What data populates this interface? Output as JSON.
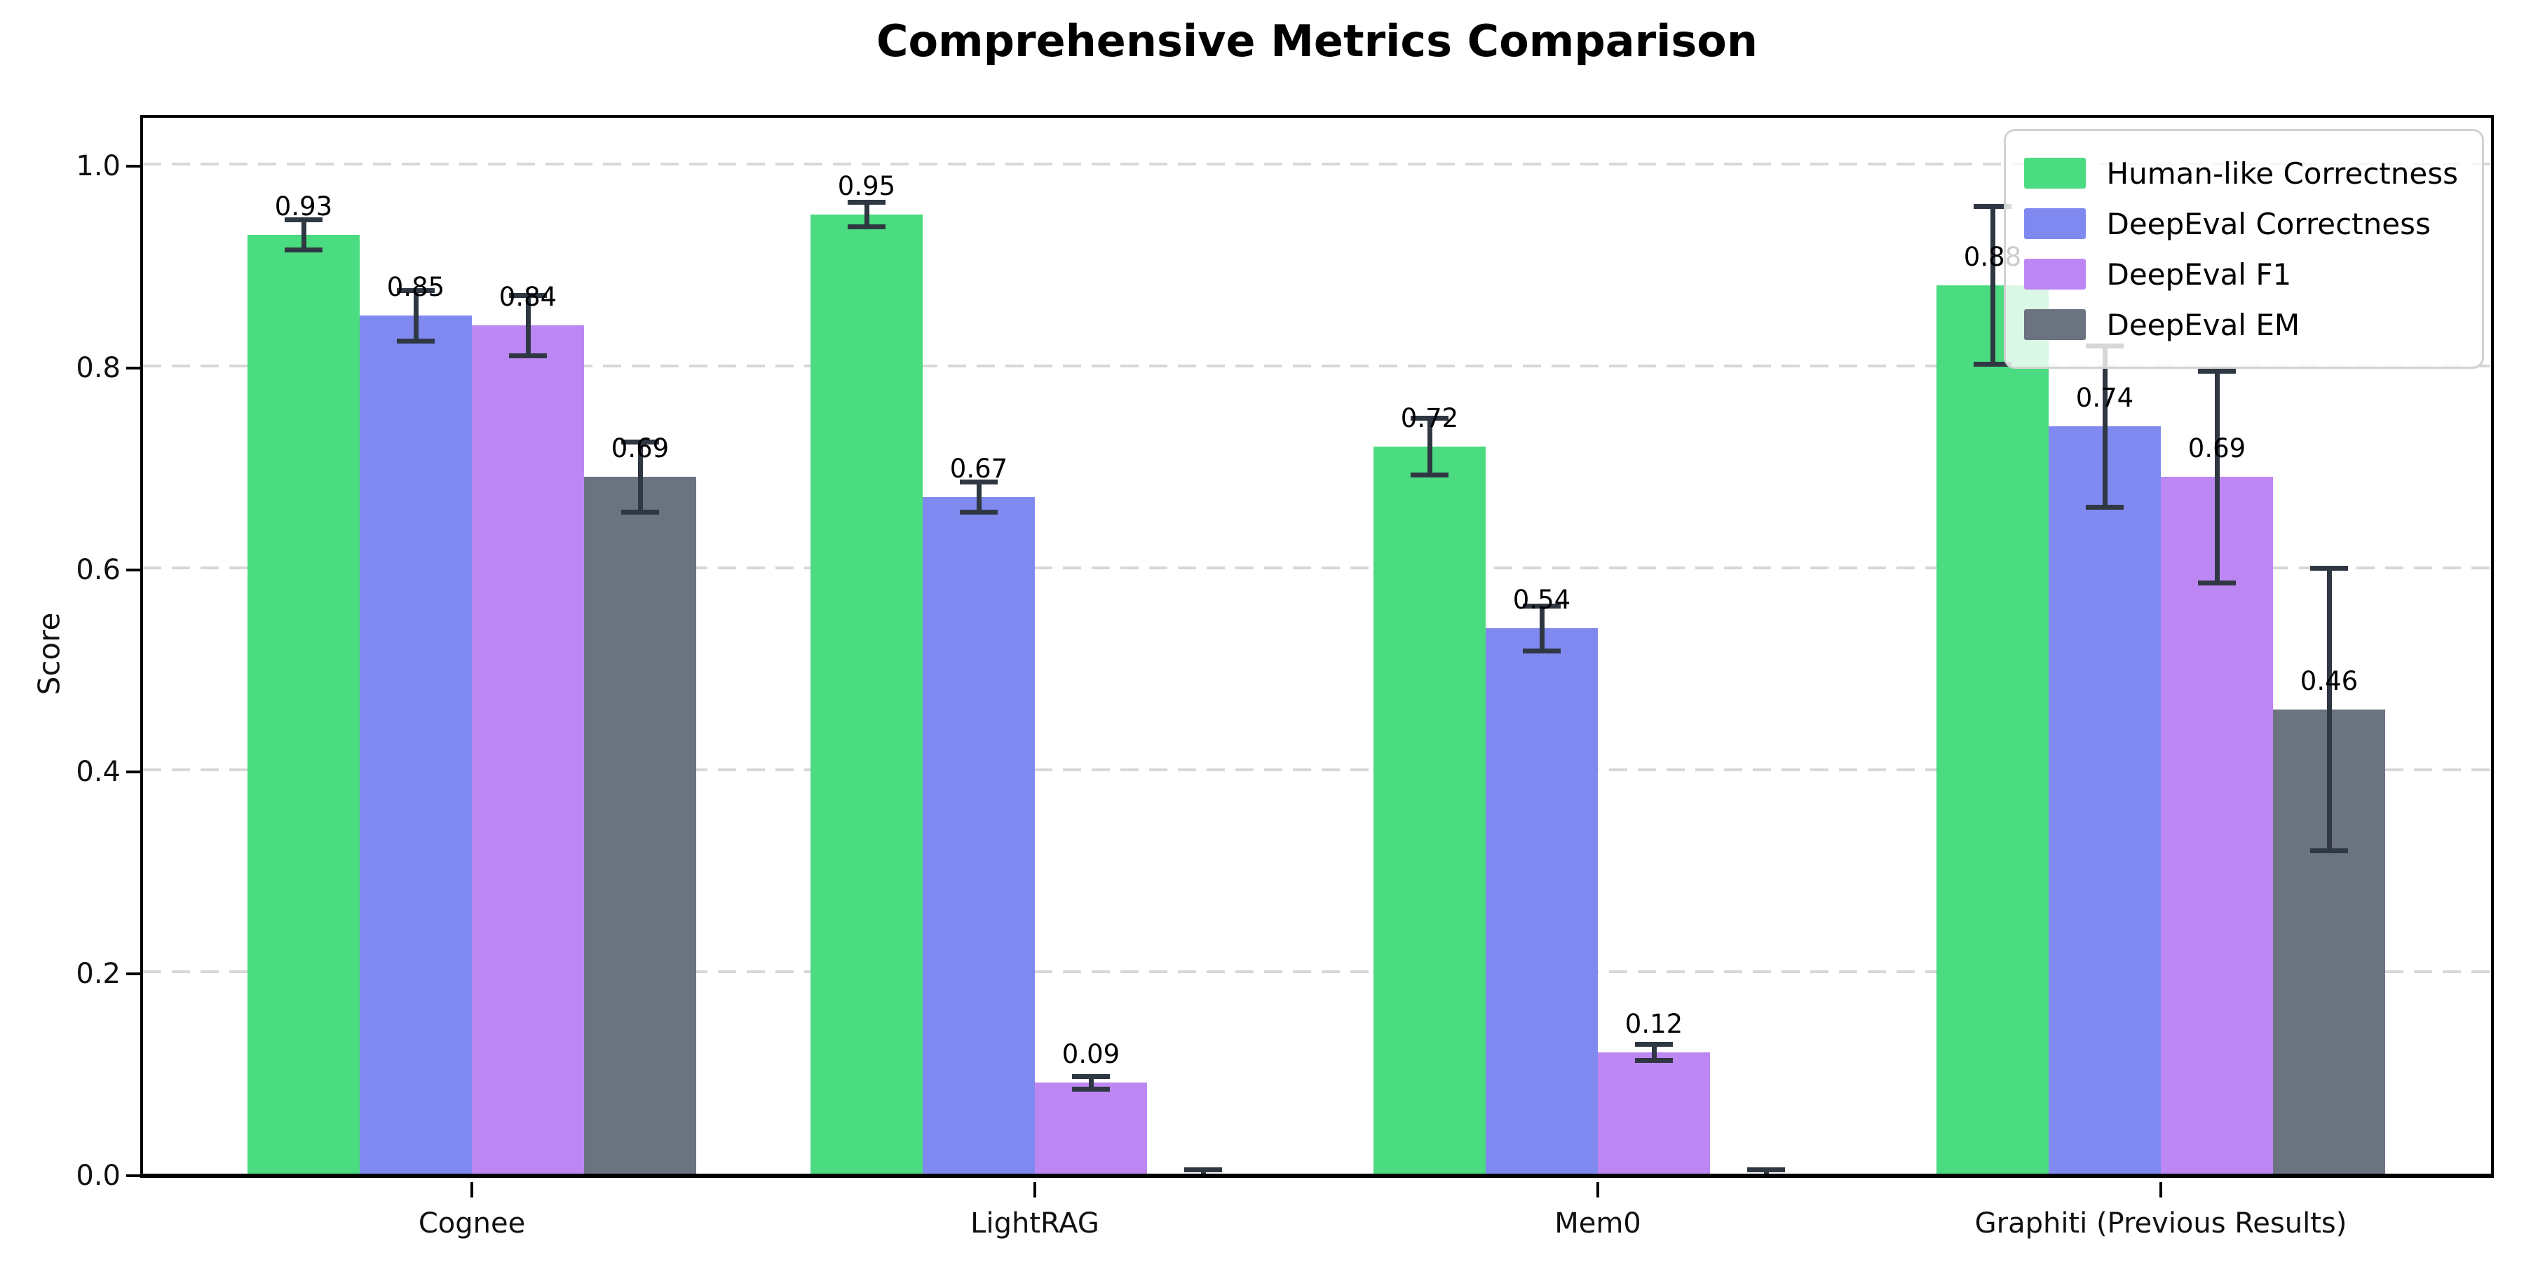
{
  "figure": {
    "title": "Comprehensive Metrics Comparison"
  },
  "chart_data": {
    "type": "bar",
    "title": "Comprehensive Metrics Comparison",
    "ylabel": "Score",
    "xlabel": "",
    "categories": [
      "Cognee",
      "LightRAG",
      "Mem0",
      "Graphiti (Previous Results)"
    ],
    "series": [
      {
        "name": "Human-like Correctness",
        "color": "#4bdb80",
        "values": [
          0.93,
          0.95,
          0.72,
          0.88
        ],
        "errors": [
          0.015,
          0.012,
          0.028,
          0.078
        ],
        "bar_labels": [
          "0.93",
          "0.95",
          "0.72",
          "0.88"
        ]
      },
      {
        "name": "DeepEval Correctness",
        "color": "#8089f0",
        "values": [
          0.85,
          0.67,
          0.54,
          0.74
        ],
        "errors": [
          0.025,
          0.015,
          0.022,
          0.08
        ],
        "bar_labels": [
          "0.85",
          "0.67",
          "0.54",
          "0.74"
        ]
      },
      {
        "name": "DeepEval F1",
        "color": "#bd87f3",
        "values": [
          0.84,
          0.09,
          0.12,
          0.69
        ],
        "errors": [
          0.03,
          0.006,
          0.008,
          0.105
        ],
        "bar_labels": [
          "0.84",
          "0.09",
          "0.12",
          "0.69"
        ]
      },
      {
        "name": "DeepEval EM",
        "color": "#6b7280",
        "values": [
          0.69,
          0.0,
          0.0,
          0.46
        ],
        "errors": [
          0.035,
          0.004,
          0.004,
          0.14
        ],
        "bar_labels": [
          "0.69",
          null,
          null,
          "0.46"
        ]
      }
    ],
    "ylim": [
      0,
      1.05
    ],
    "yticks": [
      "0.0",
      "0.2",
      "0.4",
      "0.6",
      "0.8",
      "1.0"
    ],
    "ytick_values": [
      0.0,
      0.2,
      0.4,
      0.6,
      0.8,
      1.0
    ],
    "grid": "horizontal dashed",
    "legend_position": "upper right",
    "error_bar_color": "#2f3743",
    "grid_color": "#d7d7d7",
    "background_color": "#ffffff"
  }
}
